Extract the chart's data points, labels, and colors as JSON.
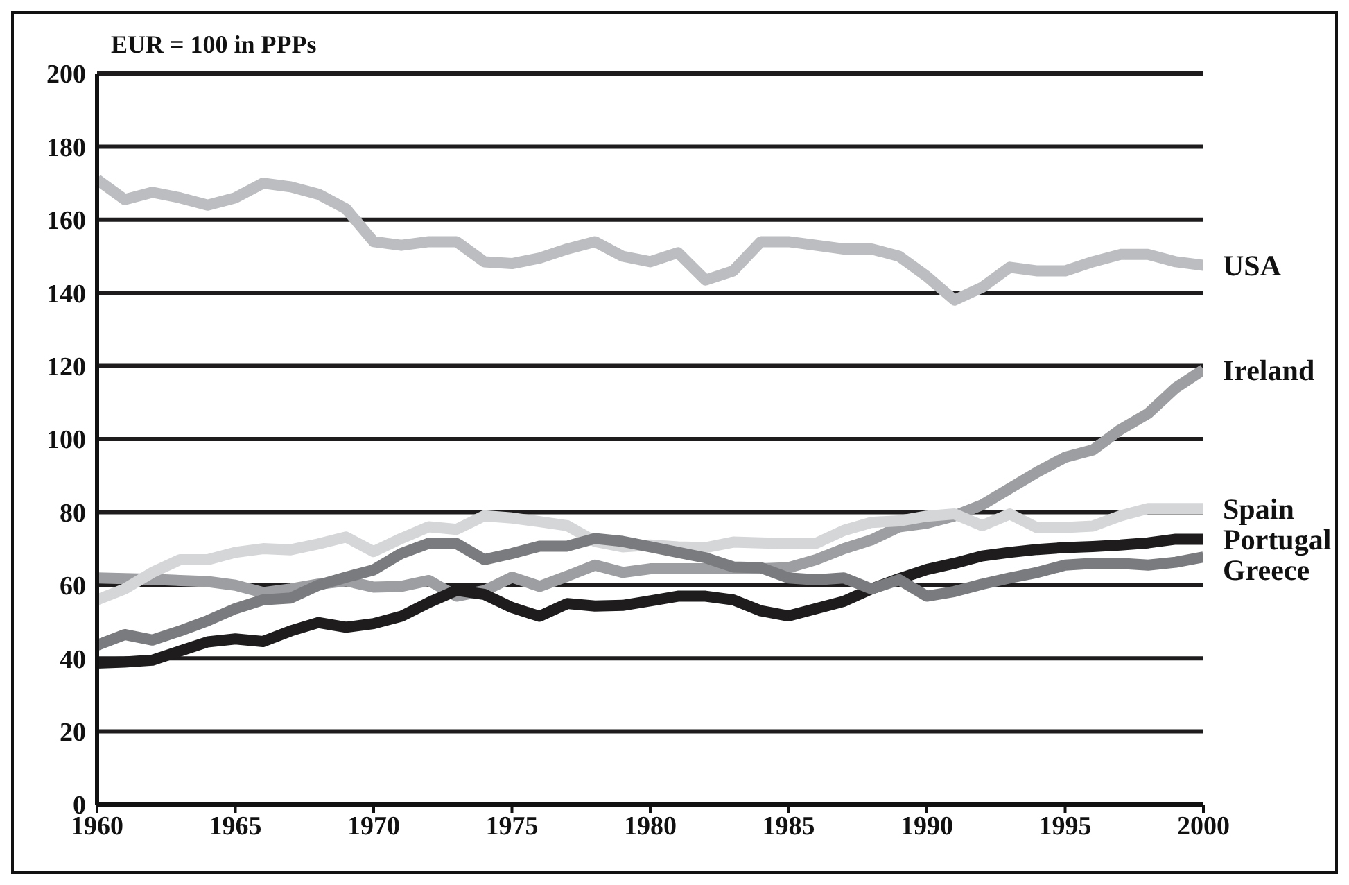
{
  "chart_data": {
    "type": "line",
    "ylabel": "EUR = 100 in PPPs",
    "x": [
      1960,
      1961,
      1962,
      1963,
      1964,
      1965,
      1966,
      1967,
      1968,
      1969,
      1970,
      1971,
      1972,
      1973,
      1974,
      1975,
      1976,
      1977,
      1978,
      1979,
      1980,
      1981,
      1982,
      1983,
      1984,
      1985,
      1986,
      1987,
      1988,
      1989,
      1990,
      1991,
      1992,
      1993,
      1994,
      1995,
      1996,
      1997,
      1998,
      1999,
      2000
    ],
    "series": [
      {
        "name": "USA",
        "color": "#bcbdc0",
        "values": [
          171,
          165.5,
          167.5,
          166,
          164,
          166,
          170,
          169,
          167,
          163,
          154,
          153,
          154,
          154,
          148.5,
          148,
          149.5,
          152,
          154,
          150,
          148.5,
          151,
          143.5,
          146,
          154,
          154,
          153,
          152,
          152,
          150,
          144.5,
          138,
          141.5,
          147,
          146,
          146,
          148.5,
          150.5,
          150.5,
          148.5,
          147.5
        ]
      },
      {
        "name": "Ireland",
        "color": "#9d9ea1",
        "values": [
          62,
          61.8,
          61.6,
          61.3,
          61,
          60,
          58,
          59,
          60.3,
          61.2,
          59.5,
          59.7,
          61.3,
          57,
          58.5,
          62.2,
          59.7,
          62.5,
          65.5,
          63.5,
          64.5,
          64.5,
          64.5,
          64.5,
          64.5,
          64.8,
          67,
          70,
          72.4,
          76,
          77,
          79,
          82,
          86.5,
          91,
          95,
          97,
          102.6,
          107,
          114,
          119
        ]
      },
      {
        "name": "Spain",
        "color": "#d5d6d8",
        "values": [
          56,
          59,
          63.5,
          67,
          67,
          69,
          70,
          69.7,
          71.3,
          73.2,
          69.2,
          72.8,
          76,
          75.3,
          79,
          78.4,
          77.4,
          76.3,
          72,
          70.5,
          71,
          70.5,
          70.3,
          71.8,
          71.6,
          71.4,
          71.5,
          75,
          77.2,
          77.6,
          78.9,
          79.5,
          76.3,
          79.5,
          75.7,
          75.8,
          76.2,
          79,
          81,
          81,
          81
        ]
      },
      {
        "name": "Portugal",
        "color": "#1e1c1d",
        "values": [
          38.7,
          39,
          39.5,
          42,
          44.5,
          45.3,
          44.6,
          47.5,
          49.8,
          48.5,
          49.5,
          51.5,
          55.3,
          58.6,
          57.5,
          53.9,
          51.5,
          55,
          54.3,
          54.5,
          55.7,
          57,
          57,
          56,
          53,
          51.6,
          53.6,
          55.6,
          59,
          61.8,
          64.3,
          66,
          68,
          69,
          69.8,
          70.3,
          70.6,
          71,
          71.6,
          72.6,
          72.6
        ]
      },
      {
        "name": "Greece",
        "color": "#7a7b7e",
        "values": [
          43.6,
          46.5,
          45,
          47.5,
          50.3,
          53.6,
          56,
          56.5,
          60,
          62.2,
          64.2,
          68.7,
          71.5,
          71.4,
          67,
          68.7,
          70.7,
          70.7,
          72.8,
          72,
          70.5,
          69,
          67.5,
          65,
          64.8,
          62,
          61.5,
          62,
          59,
          61.5,
          57,
          58.3,
          60.3,
          62,
          63.5,
          65.5,
          66,
          66,
          65.5,
          66.3,
          67.7
        ]
      }
    ],
    "xlim": [
      1960,
      2000
    ],
    "xticks": [
      1960,
      1965,
      1970,
      1975,
      1980,
      1985,
      1990,
      1995,
      2000
    ],
    "ylim": [
      0,
      200
    ],
    "yticks": [
      0,
      20,
      40,
      60,
      80,
      100,
      120,
      140,
      160,
      180,
      200
    ],
    "grid": "y",
    "legend": false,
    "marker": "none",
    "line_style": "solid"
  }
}
